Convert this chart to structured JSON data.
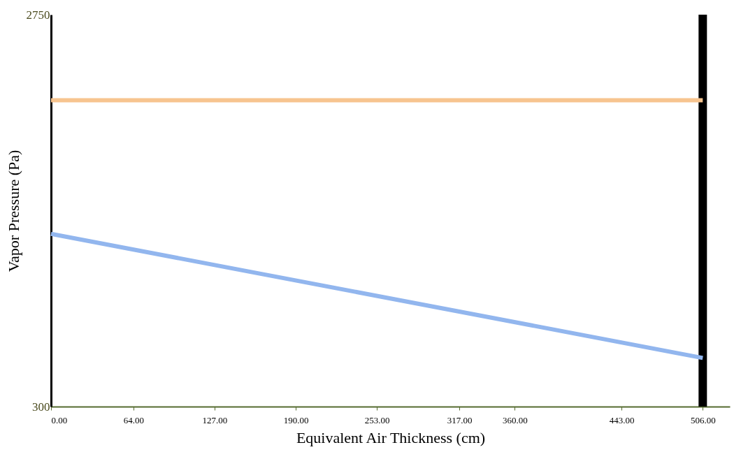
{
  "chart_data": {
    "type": "line",
    "xlabel": "Equivalent Air Thickness (cm)",
    "ylabel": "Vapor Pressure (Pa)",
    "x": [
      0,
      506
    ],
    "series": [
      {
        "color": "#f7c48f",
        "values": [
          2215,
          2215
        ]
      },
      {
        "color": "#92b6ee",
        "values": [
          1380,
          604
        ]
      }
    ],
    "xlim": [
      0,
      527
    ],
    "ylim": [
      300,
      2750
    ],
    "xticks": [
      {
        "value": 0,
        "label": "0.00"
      },
      {
        "value": 64,
        "label": "64.00"
      },
      {
        "value": 127,
        "label": "127.00"
      },
      {
        "value": 190,
        "label": "190.00"
      },
      {
        "value": 253,
        "label": "253.00"
      },
      {
        "value": 317,
        "label": "317.00"
      },
      {
        "value": 360,
        "label": "360.00"
      },
      {
        "value": 443,
        "label": "443.00"
      },
      {
        "value": 506,
        "label": "506.00"
      }
    ],
    "yticks": [
      300,
      2750
    ],
    "ref_lines": [
      {
        "axis": "x",
        "value": 506,
        "color": "#000000"
      }
    ],
    "grid": false,
    "marker": "none",
    "line_style": "solid"
  }
}
